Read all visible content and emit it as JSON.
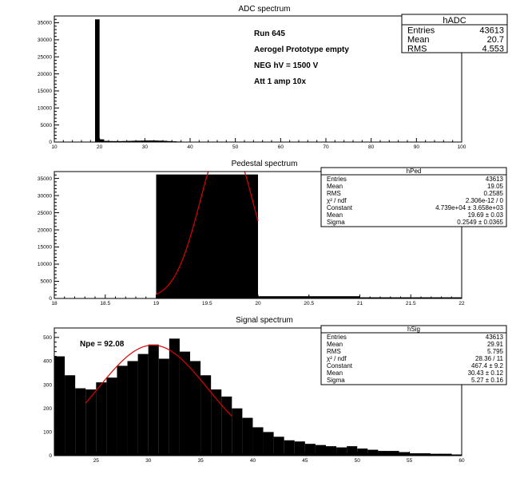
{
  "chart_data": [
    {
      "type": "bar",
      "title": "ADC spectrum",
      "xlim": [
        10,
        100
      ],
      "ylim": [
        0,
        37000
      ],
      "xticks": [
        10,
        20,
        30,
        40,
        50,
        60,
        70,
        80,
        90,
        100
      ],
      "yticks": [
        0,
        5000,
        10000,
        15000,
        20000,
        25000,
        30000,
        35000
      ],
      "bin_width": 1,
      "x": [
        19,
        20,
        21,
        22,
        23,
        24,
        25,
        26,
        27,
        28,
        29,
        30,
        31,
        32,
        33,
        34,
        35,
        36,
        37,
        38,
        39,
        40,
        41,
        42,
        43,
        44,
        45,
        46,
        47,
        48,
        49,
        50
      ],
      "values": [
        36000,
        800,
        340,
        290,
        280,
        270,
        300,
        330,
        370,
        400,
        420,
        460,
        470,
        450,
        410,
        360,
        280,
        220,
        150,
        110,
        80,
        60,
        50,
        40,
        35,
        30,
        25,
        20,
        15,
        12,
        10,
        8
      ],
      "annotations": [
        "Run  645",
        "Aerogel Prototype empty",
        "NEG hV = 1500 V",
        "Att 1 amp 10x"
      ],
      "stats": {
        "name": "hADC",
        "rows": [
          {
            "label": "Entries",
            "value": "43613"
          },
          {
            "label": "Mean",
            "value": "20.7"
          },
          {
            "label": "RMS",
            "value": "4.553"
          }
        ]
      }
    },
    {
      "type": "bar",
      "title": "Pedestal spectrum",
      "xlim": [
        18,
        22
      ],
      "ylim": [
        0,
        37000
      ],
      "xticks": [
        18,
        18.5,
        19,
        19.5,
        20,
        20.5,
        21,
        21.5,
        22
      ],
      "yticks": [
        0,
        5000,
        10000,
        15000,
        20000,
        25000,
        30000,
        35000
      ],
      "bins": [
        {
          "x0": 19,
          "x1": 20,
          "value": 36150
        },
        {
          "x0": 20,
          "x1": 21,
          "value": 650
        },
        {
          "x0": 21,
          "x1": 22,
          "value": 330
        }
      ],
      "fit": {
        "type": "gaus",
        "constant": 47390,
        "mean": 19.69,
        "sigma": 0.2549,
        "range": [
          19,
          20
        ]
      },
      "stats": {
        "name": "hPed",
        "rows": [
          {
            "label": "Entries",
            "value": "43613"
          },
          {
            "label": "Mean",
            "value": "19.05"
          },
          {
            "label": "RMS",
            "value": "0.2585"
          },
          {
            "label": "χ² / ndf",
            "value": "2.306e-12 / 0"
          },
          {
            "label": "Constant",
            "value": "4.739e+04 ± 3.658e+03"
          },
          {
            "label": "Mean",
            "value": "19.69 ± 0.03"
          },
          {
            "label": "Sigma",
            "value": "0.2549 ± 0.0365"
          }
        ]
      }
    },
    {
      "type": "bar",
      "title": "Signal spectrum",
      "xlim": [
        21,
        60
      ],
      "ylim": [
        0,
        540
      ],
      "xticks": [
        25,
        30,
        35,
        40,
        45,
        50,
        55,
        60
      ],
      "yticks": [
        0,
        100,
        200,
        300,
        400,
        500
      ],
      "bin_width": 1,
      "x": [
        21,
        22,
        23,
        24,
        25,
        26,
        27,
        28,
        29,
        30,
        31,
        32,
        33,
        34,
        35,
        36,
        37,
        38,
        39,
        40,
        41,
        42,
        43,
        44,
        45,
        46,
        47,
        48,
        49,
        50,
        51,
        52,
        53,
        54,
        55,
        56,
        57,
        58,
        59
      ],
      "values": [
        420,
        340,
        285,
        280,
        310,
        330,
        380,
        400,
        430,
        470,
        410,
        495,
        440,
        400,
        340,
        280,
        250,
        200,
        160,
        120,
        100,
        80,
        65,
        60,
        50,
        45,
        40,
        35,
        40,
        30,
        25,
        20,
        20,
        15,
        10,
        10,
        8,
        8,
        5
      ],
      "annotations": [
        "Npe = 92.08"
      ],
      "fit": {
        "type": "gaus",
        "constant": 467.4,
        "mean": 30.43,
        "sigma": 5.27,
        "range": [
          24,
          38
        ]
      },
      "stats": {
        "name": "hSig",
        "rows": [
          {
            "label": "Entries",
            "value": "43613"
          },
          {
            "label": "Mean",
            "value": "29.91"
          },
          {
            "label": "RMS",
            "value": "5.795"
          },
          {
            "label": "χ² / ndf",
            "value": "28.36 / 11"
          },
          {
            "label": "Constant",
            "value": "467.4 ± 9.2"
          },
          {
            "label": "Mean",
            "value": "30.43 ± 0.12"
          },
          {
            "label": "Sigma",
            "value": "5.27 ± 0.16"
          }
        ]
      }
    }
  ]
}
